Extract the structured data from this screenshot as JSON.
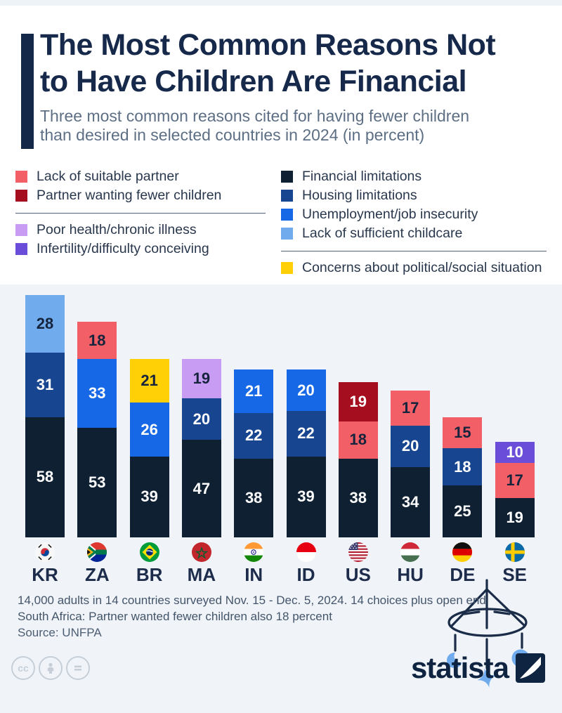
{
  "title": {
    "line1": "The Most Common Reasons Not",
    "line2": "to Have Children Are Financial"
  },
  "subtitle": {
    "line1": "Three most common reasons cited for having fewer children",
    "line2": "than desired in selected countries in 2024 (in percent)"
  },
  "legend": {
    "columns": [
      {
        "side": "left",
        "groups": [
          [
            {
              "key": "partner_lack",
              "label": "Lack of suitable partner"
            },
            {
              "key": "partner_fewer",
              "label": "Partner wanting fewer children"
            }
          ],
          [
            {
              "key": "health",
              "label": "Poor health/chronic illness"
            },
            {
              "key": "infertility",
              "label": "Infertility/difficulty conceiving"
            }
          ]
        ]
      },
      {
        "side": "right",
        "groups": [
          [
            {
              "key": "financial",
              "label": "Financial limitations"
            },
            {
              "key": "housing",
              "label": "Housing limitations"
            },
            {
              "key": "unemployment",
              "label": "Unemployment/job insecurity"
            },
            {
              "key": "childcare",
              "label": "Lack of sufficient childcare"
            }
          ],
          [
            {
              "key": "political",
              "label": "Concerns about political/social situation"
            }
          ]
        ]
      }
    ]
  },
  "chart_data": {
    "type": "bar",
    "stacked": true,
    "unit": "percent",
    "title": "Three most common reasons cited for having fewer children than desired in selected countries in 2024 (in percent)",
    "categories": [
      "KR",
      "ZA",
      "BR",
      "MA",
      "IN",
      "ID",
      "US",
      "HU",
      "DE",
      "SE"
    ],
    "series_colors": {
      "financial": "#0f2033",
      "housing": "#17458f",
      "unemployment": "#1768e6",
      "childcare": "#6fabed",
      "partner_lack": "#f25f66",
      "partner_fewer": "#a50e1e",
      "health": "#c89cf2",
      "infertility": "#6a4ed9",
      "political": "#ffd005"
    },
    "series_labels": {
      "financial": "Financial limitations",
      "housing": "Housing limitations",
      "unemployment": "Unemployment/job insecurity",
      "childcare": "Lack of sufficient childcare",
      "partner_lack": "Lack of suitable partner",
      "partner_fewer": "Partner wanting fewer children",
      "health": "Poor health/chronic illness",
      "infertility": "Infertility/difficulty conceiving",
      "political": "Concerns about political/social situation"
    },
    "bars": [
      {
        "country": "KR",
        "segments": [
          {
            "key": "financial",
            "value": 58
          },
          {
            "key": "housing",
            "value": 31
          },
          {
            "key": "childcare",
            "value": 28
          }
        ]
      },
      {
        "country": "ZA",
        "segments": [
          {
            "key": "financial",
            "value": 53
          },
          {
            "key": "unemployment",
            "value": 33
          },
          {
            "key": "partner_lack",
            "value": 18
          }
        ]
      },
      {
        "country": "BR",
        "segments": [
          {
            "key": "financial",
            "value": 39
          },
          {
            "key": "unemployment",
            "value": 26
          },
          {
            "key": "political",
            "value": 21
          }
        ]
      },
      {
        "country": "MA",
        "segments": [
          {
            "key": "financial",
            "value": 47
          },
          {
            "key": "housing",
            "value": 20
          },
          {
            "key": "health",
            "value": 19
          }
        ]
      },
      {
        "country": "IN",
        "segments": [
          {
            "key": "financial",
            "value": 38
          },
          {
            "key": "housing",
            "value": 22
          },
          {
            "key": "unemployment",
            "value": 21
          }
        ]
      },
      {
        "country": "ID",
        "segments": [
          {
            "key": "financial",
            "value": 39
          },
          {
            "key": "housing",
            "value": 22
          },
          {
            "key": "unemployment",
            "value": 20
          }
        ]
      },
      {
        "country": "US",
        "segments": [
          {
            "key": "financial",
            "value": 38
          },
          {
            "key": "partner_lack",
            "value": 18
          },
          {
            "key": "partner_fewer",
            "value": 19
          }
        ]
      },
      {
        "country": "HU",
        "segments": [
          {
            "key": "financial",
            "value": 34
          },
          {
            "key": "housing",
            "value": 20
          },
          {
            "key": "partner_lack",
            "value": 17
          }
        ]
      },
      {
        "country": "DE",
        "segments": [
          {
            "key": "financial",
            "value": 25
          },
          {
            "key": "housing",
            "value": 18
          },
          {
            "key": "partner_lack",
            "value": 15
          }
        ]
      },
      {
        "country": "SE",
        "segments": [
          {
            "key": "financial",
            "value": 19
          },
          {
            "key": "partner_lack",
            "value": 17
          },
          {
            "key": "infertility",
            "value": 10
          }
        ]
      }
    ]
  },
  "footnotes": {
    "line1": "14,000 adults in 14 countries surveyed Nov. 15 - Dec. 5, 2024. 14 choices plus open end",
    "line2": "South Africa: Partner wanted fewer children also 18 percent"
  },
  "source": "Source: UNFPA",
  "branding": {
    "logo_text": "statista",
    "accent_color": "#0e2440"
  }
}
